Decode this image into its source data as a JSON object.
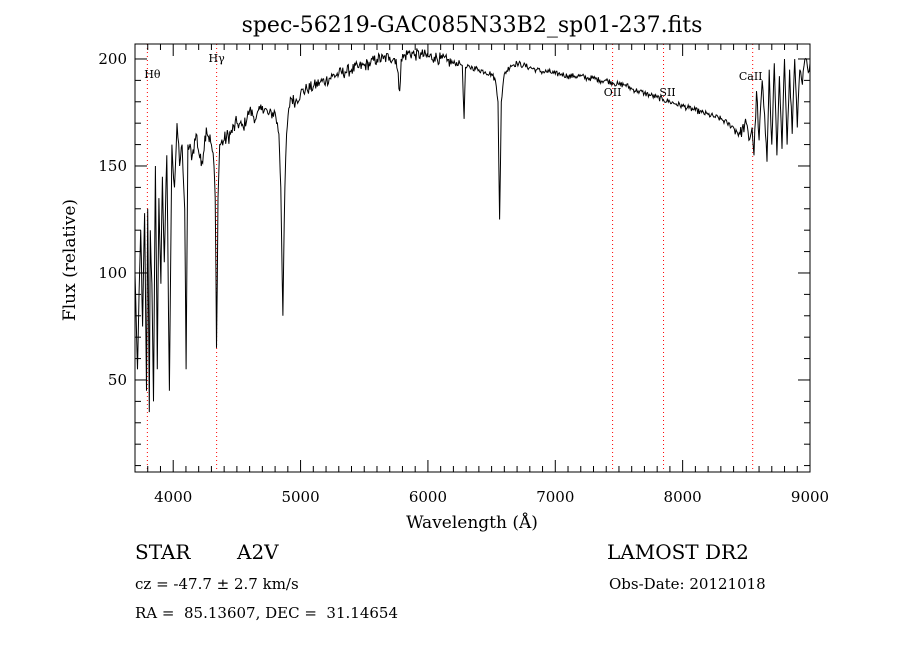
{
  "chart_data": {
    "type": "line",
    "title": "spec-56219-GAC085N33B2_sp01-237.fits",
    "xlabel": "Wavelength (Å)",
    "ylabel": "Flux (relative)",
    "xlim": [
      3700,
      9000
    ],
    "ylim": [
      7,
      207
    ],
    "x_ticks": [
      4000,
      5000,
      6000,
      7000,
      8000,
      9000
    ],
    "x_tick_labels": [
      "4000",
      "5000",
      "6000",
      "7000",
      "8000",
      "9000"
    ],
    "y_ticks": [
      50,
      100,
      150,
      200
    ],
    "y_tick_labels": [
      "50",
      "100",
      "150",
      "200"
    ],
    "grid": false,
    "line_color": "#000000",
    "marker_color": "#ff0000",
    "spectrum_points": [
      [
        3700,
        100
      ],
      [
        3720,
        55
      ],
      [
        3745,
        120
      ],
      [
        3760,
        75
      ],
      [
        3775,
        128
      ],
      [
        3790,
        45
      ],
      [
        3800,
        130
      ],
      [
        3812,
        35
      ],
      [
        3820,
        120
      ],
      [
        3833,
        95
      ],
      [
        3845,
        40
      ],
      [
        3860,
        150
      ],
      [
        3875,
        55
      ],
      [
        3888,
        135
      ],
      [
        3903,
        95
      ],
      [
        3915,
        145
      ],
      [
        3930,
        105
      ],
      [
        3950,
        155
      ],
      [
        3970,
        45
      ],
      [
        3990,
        160
      ],
      [
        4010,
        140
      ],
      [
        4030,
        170
      ],
      [
        4050,
        150
      ],
      [
        4070,
        160
      ],
      [
        4090,
        130
      ],
      [
        4101,
        55
      ],
      [
        4115,
        160
      ],
      [
        4150,
        155
      ],
      [
        4180,
        165
      ],
      [
        4220,
        150
      ],
      [
        4260,
        168
      ],
      [
        4300,
        160
      ],
      [
        4320,
        150
      ],
      [
        4330,
        135
      ],
      [
        4340,
        65
      ],
      [
        4352,
        135
      ],
      [
        4365,
        160
      ],
      [
        4400,
        162
      ],
      [
        4450,
        165
      ],
      [
        4500,
        170
      ],
      [
        4550,
        168
      ],
      [
        4600,
        176
      ],
      [
        4650,
        172
      ],
      [
        4700,
        178
      ],
      [
        4750,
        174
      ],
      [
        4800,
        175
      ],
      [
        4830,
        165
      ],
      [
        4845,
        140
      ],
      [
        4861,
        80
      ],
      [
        4877,
        140
      ],
      [
        4890,
        165
      ],
      [
        4920,
        182
      ],
      [
        4960,
        180
      ],
      [
        5000,
        184
      ],
      [
        5050,
        186
      ],
      [
        5100,
        187
      ],
      [
        5150,
        189
      ],
      [
        5200,
        190
      ],
      [
        5250,
        192
      ],
      [
        5300,
        193
      ],
      [
        5350,
        194
      ],
      [
        5400,
        195
      ],
      [
        5450,
        196
      ],
      [
        5500,
        197
      ],
      [
        5550,
        198
      ],
      [
        5600,
        200
      ],
      [
        5650,
        200
      ],
      [
        5700,
        201
      ],
      [
        5750,
        200
      ],
      [
        5778,
        185
      ],
      [
        5790,
        200
      ],
      [
        5850,
        203
      ],
      [
        5900,
        202
      ],
      [
        5950,
        202
      ],
      [
        6000,
        201
      ],
      [
        6050,
        201
      ],
      [
        6100,
        200
      ],
      [
        6150,
        199
      ],
      [
        6200,
        198
      ],
      [
        6250,
        198
      ],
      [
        6270,
        197
      ],
      [
        6284,
        172
      ],
      [
        6295,
        196
      ],
      [
        6350,
        196
      ],
      [
        6400,
        195
      ],
      [
        6450,
        194
      ],
      [
        6500,
        193
      ],
      [
        6530,
        190
      ],
      [
        6550,
        180
      ],
      [
        6563,
        125
      ],
      [
        6576,
        180
      ],
      [
        6600,
        193
      ],
      [
        6650,
        197
      ],
      [
        6700,
        198
      ],
      [
        6750,
        197
      ],
      [
        6800,
        196
      ],
      [
        6850,
        195
      ],
      [
        6900,
        194
      ],
      [
        6950,
        194
      ],
      [
        7000,
        193
      ],
      [
        7050,
        193
      ],
      [
        7100,
        192
      ],
      [
        7150,
        192
      ],
      [
        7200,
        192
      ],
      [
        7250,
        191
      ],
      [
        7300,
        191
      ],
      [
        7350,
        190
      ],
      [
        7400,
        190
      ],
      [
        7450,
        189
      ],
      [
        7500,
        188
      ],
      [
        7550,
        188
      ],
      [
        7600,
        186
      ],
      [
        7650,
        185
      ],
      [
        7700,
        184
      ],
      [
        7750,
        183
      ],
      [
        7800,
        182
      ],
      [
        7850,
        181
      ],
      [
        7900,
        180
      ],
      [
        7950,
        179
      ],
      [
        8000,
        178
      ],
      [
        8050,
        177
      ],
      [
        8100,
        176
      ],
      [
        8150,
        175
      ],
      [
        8200,
        174
      ],
      [
        8250,
        173
      ],
      [
        8300,
        172
      ],
      [
        8350,
        170
      ],
      [
        8400,
        168
      ],
      [
        8450,
        165
      ],
      [
        8500,
        170
      ],
      [
        8520,
        162
      ],
      [
        8545,
        168
      ],
      [
        8560,
        155
      ],
      [
        8580,
        185
      ],
      [
        8600,
        162
      ],
      [
        8625,
        190
      ],
      [
        8650,
        165
      ],
      [
        8662,
        152
      ],
      [
        8680,
        195
      ],
      [
        8700,
        160
      ],
      [
        8720,
        198
      ],
      [
        8740,
        155
      ],
      [
        8760,
        192
      ],
      [
        8780,
        158
      ],
      [
        8800,
        200
      ],
      [
        8820,
        160
      ],
      [
        8840,
        195
      ],
      [
        8860,
        165
      ],
      [
        8880,
        200
      ],
      [
        8900,
        168
      ],
      [
        8920,
        195
      ],
      [
        8940,
        188
      ],
      [
        8960,
        200
      ],
      [
        8980,
        196
      ],
      [
        9000,
        198
      ]
    ],
    "line_markers": [
      {
        "label": "Hθ",
        "x": 3797
      },
      {
        "label": "Hγ",
        "x": 4341
      },
      {
        "label": "OII",
        "x": 7450
      },
      {
        "label": "SII",
        "x": 7850
      },
      {
        "label": "CaII",
        "x": 8550
      }
    ]
  },
  "info": {
    "object_type": "STAR",
    "subclass": "A2V",
    "survey": "LAMOST DR2",
    "cz": "cz = -47.7 ± 2.7 km/s",
    "obs_date": "Obs-Date: 20121018",
    "coords": "RA =  85.13607, DEC =  31.14654"
  }
}
